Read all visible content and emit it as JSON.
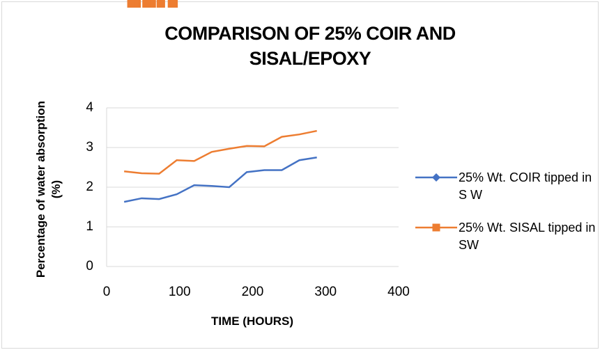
{
  "chart_data": {
    "type": "line",
    "title": "COMPARISON OF 25% COIR AND SISAL/EPOXY",
    "x_label": "TIME (HOURS)",
    "y_label": "Percentage of water absorption (%)",
    "xlim": [
      0,
      400
    ],
    "xticks": [
      0,
      100,
      200,
      300,
      400
    ],
    "ylim": [
      0,
      4
    ],
    "yticks": [
      0,
      1,
      2,
      3,
      4
    ],
    "grid": true,
    "legend": "right",
    "series": [
      {
        "name": "25% Wt. COIR tipped in S W",
        "color": "#4472c4",
        "marker": "diamond",
        "x": [
          24,
          48,
          72,
          96,
          120,
          144,
          168,
          192,
          216,
          240,
          264,
          288
        ],
        "values": [
          1.63,
          1.72,
          1.7,
          1.82,
          2.05,
          2.03,
          2.0,
          2.38,
          2.43,
          2.43,
          2.68,
          2.75
        ]
      },
      {
        "name": "25% Wt. SISAL tipped in SW",
        "color": "#ed7d31",
        "marker": "square",
        "x": [
          24,
          48,
          72,
          96,
          120,
          144,
          168,
          192,
          216,
          240,
          264,
          288
        ],
        "values": [
          2.4,
          2.35,
          2.34,
          2.68,
          2.66,
          2.89,
          2.97,
          3.04,
          3.03,
          3.27,
          3.33,
          3.42
        ]
      }
    ]
  }
}
